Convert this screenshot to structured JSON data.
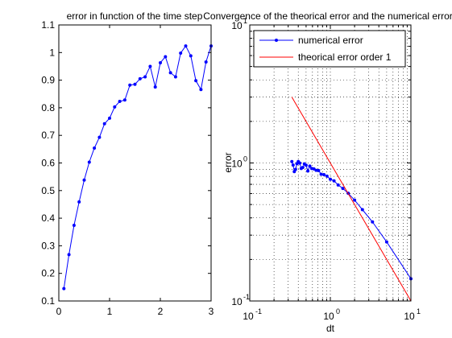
{
  "chart_data": [
    {
      "type": "line",
      "title": "error in function of the time step",
      "xlabel": "",
      "ylabel": "",
      "xlim": [
        0,
        3
      ],
      "ylim": [
        0.1,
        1.1
      ],
      "xticks": [
        {
          "value": 0,
          "label": "0"
        },
        {
          "value": 1,
          "label": "1"
        },
        {
          "value": 2,
          "label": "2"
        },
        {
          "value": 3,
          "label": "3"
        }
      ],
      "yticks": [
        {
          "value": 0.1,
          "label": "0.1"
        },
        {
          "value": 0.2,
          "label": "0.2"
        },
        {
          "value": 0.3,
          "label": "0.3"
        },
        {
          "value": 0.4,
          "label": "0.4"
        },
        {
          "value": 0.5,
          "label": "0.5"
        },
        {
          "value": 0.6,
          "label": "0.6"
        },
        {
          "value": 0.7,
          "label": "0.7"
        },
        {
          "value": 0.8,
          "label": "0.8"
        },
        {
          "value": 0.9,
          "label": "0.9"
        },
        {
          "value": 1.0,
          "label": "1"
        },
        {
          "value": 1.1,
          "label": "1.1"
        }
      ],
      "grid": false,
      "series": [
        {
          "color": "#0000ff",
          "marker": "dot",
          "x": [
            0.1,
            0.2,
            0.3,
            0.4,
            0.5,
            0.6,
            0.7,
            0.8,
            0.9,
            1.0,
            1.1,
            1.2,
            1.3,
            1.4,
            1.5,
            1.6,
            1.7,
            1.8,
            1.9,
            2.0,
            2.1,
            2.2,
            2.3,
            2.4,
            2.5,
            2.6,
            2.7,
            2.8,
            2.9,
            3.0
          ],
          "y": [
            0.145,
            0.268,
            0.374,
            0.459,
            0.538,
            0.603,
            0.654,
            0.693,
            0.742,
            0.762,
            0.803,
            0.823,
            0.828,
            0.882,
            0.885,
            0.905,
            0.912,
            0.95,
            0.875,
            0.963,
            0.985,
            0.927,
            0.912,
            0.998,
            1.024,
            0.988,
            0.898,
            0.866,
            0.966,
            1.024
          ]
        }
      ]
    },
    {
      "type": "line",
      "title": "Convergence of the theorical error and the numerical error i",
      "xlabel": "dt",
      "ylabel": "error",
      "xscale": "log",
      "yscale": "log",
      "xlim": [
        0.1,
        10
      ],
      "ylim": [
        0.1,
        10
      ],
      "grid": true,
      "legend_position": "top-right",
      "xticks": [
        {
          "value": 0.1,
          "base": "10",
          "exp": "-1"
        },
        {
          "value": 1,
          "base": "10",
          "exp": "0"
        },
        {
          "value": 10,
          "base": "10",
          "exp": "1"
        }
      ],
      "yticks": [
        {
          "value": 0.1,
          "base": "10",
          "exp": "-1"
        },
        {
          "value": 1,
          "base": "10",
          "exp": "0"
        },
        {
          "value": 10,
          "base": "10",
          "exp": "1"
        }
      ],
      "series": [
        {
          "name": "numerical error",
          "color": "#0000ff",
          "marker": "dot",
          "x": [
            10.0,
            5.0,
            3.333,
            2.5,
            2.0,
            1.667,
            1.429,
            1.25,
            1.111,
            1.0,
            0.909,
            0.833,
            0.769,
            0.714,
            0.667,
            0.625,
            0.588,
            0.556,
            0.526,
            0.5,
            0.476,
            0.455,
            0.435,
            0.417,
            0.4,
            0.385,
            0.37,
            0.357,
            0.345,
            0.333
          ],
          "y": [
            0.145,
            0.268,
            0.374,
            0.459,
            0.538,
            0.603,
            0.654,
            0.693,
            0.742,
            0.762,
            0.803,
            0.823,
            0.828,
            0.882,
            0.885,
            0.905,
            0.912,
            0.95,
            0.875,
            0.963,
            0.985,
            0.927,
            0.912,
            0.998,
            1.024,
            0.988,
            0.898,
            0.866,
            0.966,
            1.024
          ]
        },
        {
          "name": "theorical error order 1",
          "color": "#ff0000",
          "marker": "none",
          "x": [
            0.333,
            10.0
          ],
          "y": [
            3.0,
            0.1
          ]
        }
      ]
    }
  ]
}
